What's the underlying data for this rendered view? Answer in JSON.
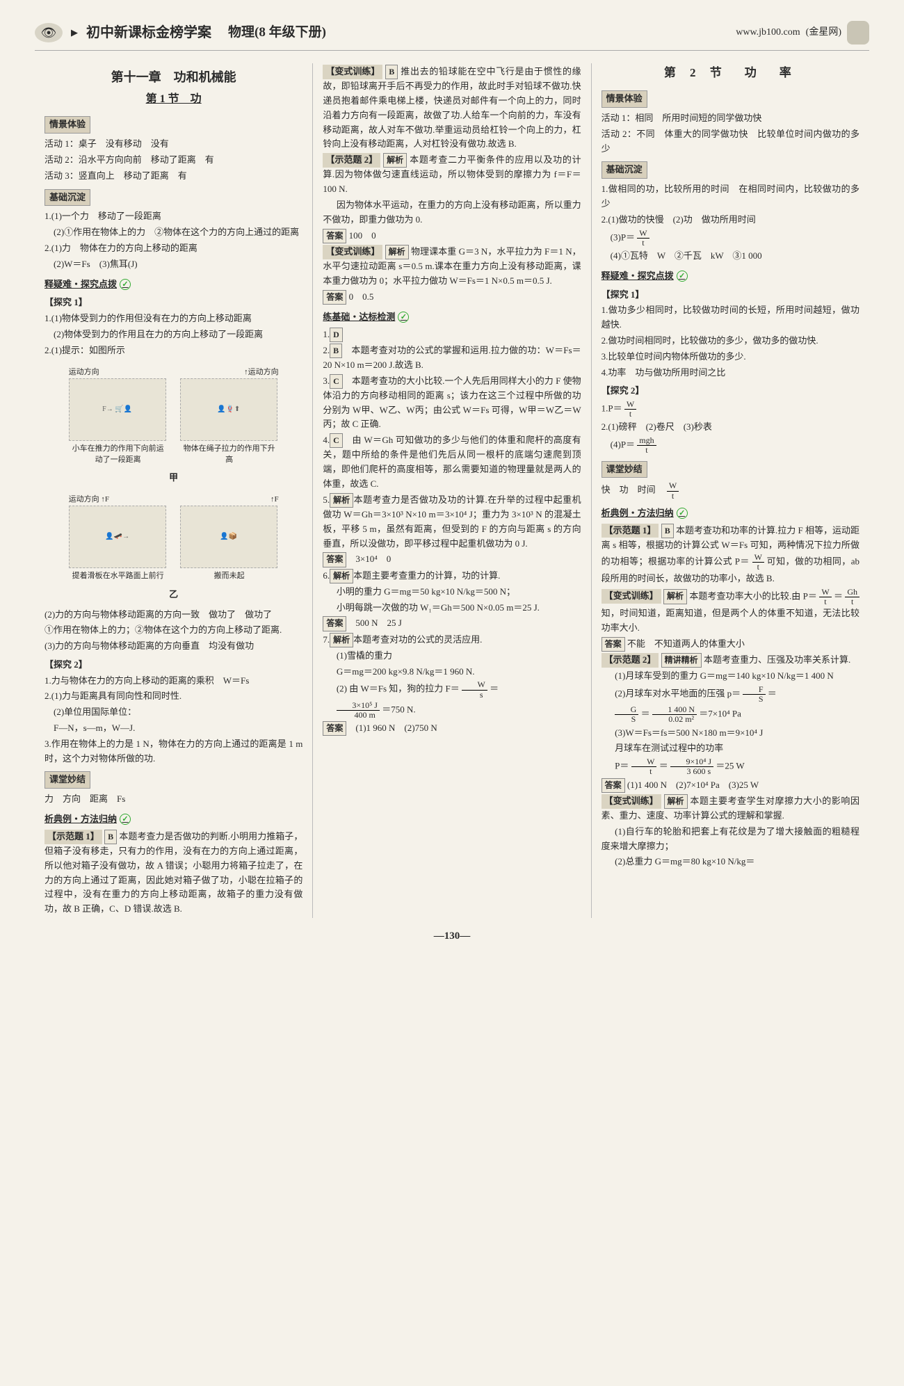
{
  "header": {
    "book_title": "初中新课标金榜学案",
    "subject": "物理",
    "grade": "(8 年级下册)",
    "url": "www.jb100.com",
    "url_note": "(金星网)"
  },
  "page_number": "—130—",
  "col1": {
    "chapter": "第十一章　功和机械能",
    "section": "第 1 节　功",
    "labels": {
      "qingjing": "情景体验",
      "jichu": "基础沉淀",
      "shiyi": "释疑难・探究点拨",
      "ketang": "课堂妙结",
      "xidian": "析典例・方法归纳"
    },
    "qingjing_lines": [
      "活动 1：桌子　没有移动　没有",
      "活动 2：沿水平方向向前　移动了距离　有",
      "活动 3：竖直向上　移动了距离　有"
    ],
    "jichu_lines": [
      "1.(1)一个力　移动了一段距离",
      "　(2)①作用在物体上的力　②物体在这个力的方向上通过的距离",
      "2.(1)力　物体在力的方向上移动的距离",
      "　(2)W＝Fs　(3)焦耳(J)"
    ],
    "tanjiu1_label": "【探究 1】",
    "tanjiu1_lines": [
      "1.(1)物体受到力的作用但没有在力的方向上移动距离",
      "　(2)物体受到力的作用且在力的方向上移动了一段距离",
      "2.(1)提示：如图所示"
    ],
    "fig_arrow_label": "运动方向",
    "fig_arrow_label2": "运动方向",
    "fig1_caption": "小车在推力的作用下向前运动了一段距离",
    "fig2_caption": "物体在绳子拉力的作用下升高",
    "fig_jia": "甲",
    "fig3_caption": "提着滑板在水平路面上前行",
    "fig4_caption": "搬而未起",
    "fig_yi": "乙",
    "after_fig_lines": [
      "(2)力的方向与物体移动距离的方向一致　做功了　做功了",
      "①作用在物体上的力；②物体在这个力的方向上移动了距离.",
      "(3)力的方向与物体移动距离的方向垂直　均没有做功"
    ],
    "tanjiu2_label": "【探究 2】",
    "tanjiu2_lines": [
      "1.力与物体在力的方向上移动的距离的乘积　W＝Fs",
      "2.(1)力与距离具有同向性和同时性.",
      "　(2)单位用国际单位：",
      "　F—N，s—m，W—J.",
      "3.作用在物体上的力是 1 N，物体在力的方向上通过的距离是 1 m 时，这个力对物体所做的功."
    ],
    "ketang_line": "力　方向　距离　Fs",
    "shifan1_label": "【示范题 1】",
    "shifan1_ans": "B",
    "shifan1_text": "本题考查力是否做功的判断.小明用力推箱子，但箱子没有移走，只有力的作用，没有在力的方向上通过距离，所以他对箱子没有做功，故 A 错误；小聪用力将箱子拉走了，在力的方向上通过了距离，因此她对箱子做了功，小聪在拉箱子的过程中，没有在重力的方向上移动距离，故箱子的重力没有做功，故 B 正确，C、D 错误.故选 B."
  },
  "col2": {
    "bianshi_label": "【变式训练】",
    "bianshi_ans": "B",
    "bianshi_text": "推出去的铅球能在空中飞行是由于惯性的缘故，即铅球离开手后不再受力的作用，故此时手对铅球不做功.快递员抱着邮件乘电梯上楼，快递员对邮件有一个向上的力，同时沿着力方向有一段距离，故做了功.人给车一个向前的力，车没有移动距离，故人对车不做功.举重运动员给杠铃一个向上的力，杠铃向上没有移动距离，人对杠铃没有做功.故选 B.",
    "shifan2_label": "【示范题 2】",
    "jiexi_label": "解析",
    "shifan2_text": "本题考查二力平衡条件的应用以及功的计算.因为物体做匀速直线运动，所以物体受到的摩擦力为 f＝F＝100 N.",
    "shifan2_text2": "因为物体水平运动，在重力的方向上没有移动距离，所以重力不做功，即重力做功为 0.",
    "daan_label": "答案",
    "shifan2_ans": "100　0",
    "bianshi2_label": "【变式训练】",
    "bianshi2_text": "物理课本重 G＝3 N，水平拉力为 F＝1 N，水平匀速拉动距离 s＝0.5 m.课本在重力方向上没有移动距离，课本重力做功为 0；水平拉力做功 W＝Fs＝1 N×0.5 m＝0.5 J.",
    "bianshi2_ans": "0　0.5",
    "lianjichu": "练基础・达标检测",
    "q1_ans": "D",
    "q2_ans": "B",
    "q2_text": "本题考查对功的公式的掌握和运用.拉力做的功：W＝Fs＝20 N×10 m＝200 J.故选 B.",
    "q3_ans": "C",
    "q3_text": "本题考查功的大小比较.一个人先后用同样大小的力 F 使物体沿力的方向移动相同的距离 s；该力在这三个过程中所做的功分别为 W甲、W乙、W丙；由公式 W＝Fs 可得，W甲＝W乙＝W丙；故 C 正确.",
    "q4_ans": "C",
    "q4_text": "由 W＝Gh 可知做功的多少与他们的体重和爬杆的高度有关，题中所给的条件是他们先后从同一根杆的底端匀速爬到顶端，即他们爬杆的高度相等，那么需要知道的物理量就是两人的体重，故选 C.",
    "q5_label": "5.",
    "q5_text": "本题考查力是否做功及功的计算.在升举的过程中起重机做功 W＝Gh＝3×10³ N×10 m＝3×10⁴ J；重力为 3×10³ N 的混凝土板，平移 5 m，虽然有距离，但受到的 F 的方向与距离 s 的方向垂直，所以没做功，即平移过程中起重机做功为 0 J.",
    "q5_ans": "3×10⁴　0",
    "q6_label": "6.",
    "q6_text": "本题主要考查重力的计算，功的计算.",
    "q6_text2": "小明的重力 G＝mg＝50 kg×10 N/kg＝500 N；",
    "q6_text3": "小明每跳一次做的功 W₁＝Gh＝500 N×0.05 m＝25 J.",
    "q6_ans": "500 N　25 J",
    "q7_label": "7.",
    "q7_text": "本题考查对功的公式的灵活应用.",
    "q7_line1": "(1)雪橇的重力",
    "q7_line2": "G＝mg＝200 kg×9.8 N/kg＝1 960 N.",
    "q7_line3_pre": "(2) 由 W＝Fs 知，狗的拉力 F＝",
    "q7_frac": {
      "num": "W",
      "den": "s"
    },
    "q7_line3_post": "＝",
    "q7_frac2": {
      "num": "3×10⁵ J",
      "den": "400 m"
    },
    "q7_line4": "＝750 N.",
    "q7_ans": "(1)1 960 N　(2)750 N"
  },
  "col3": {
    "section_title": "第 2 节　功　率",
    "labels": {
      "qingjing": "情景体验",
      "jichu": "基础沉淀",
      "shiyi": "释疑难・探究点拨",
      "ketang": "课堂妙结",
      "xidian": "析典例・方法归纳"
    },
    "qingjing_lines": [
      "活动 1：相同　所用时间短的同学做功快",
      "活动 2：不同　体重大的同学做功快　比较单位时间内做功的多少"
    ],
    "jichu_lines_1": "1.做相同的功，比较所用的时间　在相同时间内，比较做功的多少",
    "jichu_lines_2": "2.(1)做功的快慢　(2)功　做功所用时间",
    "jichu_lines_3_pre": "　(3)P＝",
    "jichu_frac": {
      "num": "W",
      "den": "t"
    },
    "jichu_lines_4": "　(4)①瓦特　W　②千瓦　kW　③1 000",
    "tanjiu1_label": "【探究 1】",
    "tanjiu1_lines": [
      "1.做功多少相同时，比较做功时间的长短，所用时间越短，做功越快.",
      "2.做功时间相同时，比较做功的多少，做功多的做功快.",
      "3.比较单位时间内物体所做功的多少.",
      "4.功率　功与做功所用时间之比"
    ],
    "tanjiu2_label": "【探究 2】",
    "tanjiu2_line1_pre": "1.P＝",
    "tanjiu2_frac1": {
      "num": "W",
      "den": "t"
    },
    "tanjiu2_line2": "2.(1)磅秤　(2)卷尺　(3)秒表",
    "tanjiu2_line3_pre": "　(4)P＝",
    "tanjiu2_frac2": {
      "num": "mgh",
      "den": "t"
    },
    "ketang_line_pre": "快　功　时间　",
    "ketang_frac": {
      "num": "W",
      "den": "t"
    },
    "shifan1_label": "【示范题 1】",
    "shifan1_ans": "B",
    "shifan1_text_pre": "本题考查功和功率的计算.拉力 F 相等，运动距离 s 相等，根据功的计算公式 W＝Fs 可知，两种情况下拉力所做的功相等；根据功率的计算公式 P＝",
    "shifan1_frac": {
      "num": "W",
      "den": "t"
    },
    "shifan1_text_post": "可知，做的功相同，ab 段所用的时间长，故做功的功率小，故选 B.",
    "bianshi_label": "【变式训练】",
    "bianshi_text_pre": "本题考查功率大小的比较.由 P＝",
    "bianshi_frac1": {
      "num": "W",
      "den": "t"
    },
    "bianshi_mid": "＝",
    "bianshi_frac2": {
      "num": "Gh",
      "den": "t"
    },
    "bianshi_text_post": "知，时间知道，距离知道，但是两个人的体重不知道，无法比较功率大小.",
    "bianshi_ans": "不能　不知道两人的体重大小",
    "shifan2_label": "【示范题 2】",
    "jingjiang_label": "精讲精析",
    "shifan2_text": "本题考查重力、压强及功率关系计算.",
    "shifan2_line1": "(1)月球车受到的重力 G＝mg＝140 kg×10 N/kg＝1 400 N",
    "shifan2_line2_pre": "(2)月球车对水平地面的压强 p＝",
    "shifan2_frac1": {
      "num": "F",
      "den": "S"
    },
    "shifan2_line2_mid": "＝",
    "shifan2_frac2": {
      "num": "G",
      "den": "S"
    },
    "shifan2_line2_mid2": "＝",
    "shifan2_frac3": {
      "num": "1 400 N",
      "den": "0.02 m²"
    },
    "shifan2_line2_post": "＝7×10⁴ Pa",
    "shifan2_line3": "(3)W＝Fs＝fs＝500 N×180 m＝9×10⁴ J",
    "shifan2_line4": "月球车在测试过程中的功率",
    "shifan2_line5_pre": "P＝",
    "shifan2_frac4": {
      "num": "W",
      "den": "t"
    },
    "shifan2_line5_mid": "＝",
    "shifan2_frac5": {
      "num": "9×10⁴ J",
      "den": "3 600 s"
    },
    "shifan2_line5_post": "＝25 W",
    "shifan2_ans": "(1)1 400 N　(2)7×10⁴ Pa　(3)25 W",
    "bianshi2_label": "【变式训练】",
    "bianshi2_text": "本题主要考查学生对摩擦力大小的影响因素、重力、速度、功率计算公式的理解和掌握.",
    "bianshi2_line1": "(1)自行车的轮胎和把套上有花纹是为了增大接触面的粗糙程度来增大摩擦力；",
    "bianshi2_line2": "(2)总重力 G＝mg＝80 kg×10 N/kg＝"
  }
}
